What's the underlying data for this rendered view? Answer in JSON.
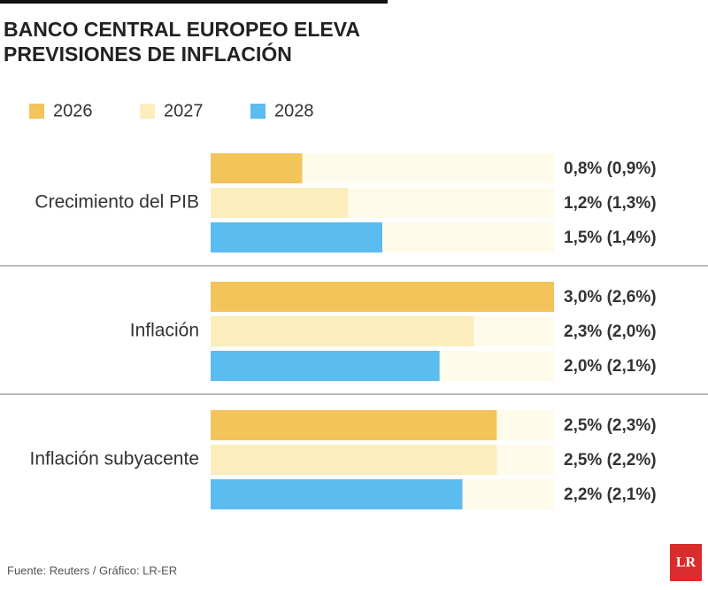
{
  "chart_data": {
    "type": "bar",
    "orientation": "horizontal",
    "title": [
      "BANCO CENTRAL EUROPEO ELEVA",
      "PREVISIONES DE INFLACIÓN"
    ],
    "categories": [
      "Crecimiento del PIB",
      "Inflación",
      "Inflación subyacente"
    ],
    "series": [
      {
        "name": "2026",
        "color": "#f2c45a",
        "values": [
          0.8,
          3.0,
          2.5
        ],
        "value_labels": [
          "0,8% (0,9%)",
          "3,0% (2,6%)",
          "2,5% (2,3%)"
        ]
      },
      {
        "name": "2027",
        "color": "#fbedbd",
        "values": [
          1.2,
          2.3,
          2.5
        ],
        "value_labels": [
          "1,2% (1,3%)",
          "2,3% (2,0%)",
          "2,5% (2,2%)"
        ]
      },
      {
        "name": "2028",
        "color": "#5bbcf0",
        "values": [
          1.5,
          2.0,
          2.2
        ],
        "value_labels": [
          "1,5% (1,4%)",
          "2,0% (2,1%)",
          "2,2% (2,1%)"
        ]
      }
    ],
    "track_color": "#fffbea",
    "source": "Fuente: Reuters / Gráfico: LR-ER",
    "logo": "LR"
  }
}
